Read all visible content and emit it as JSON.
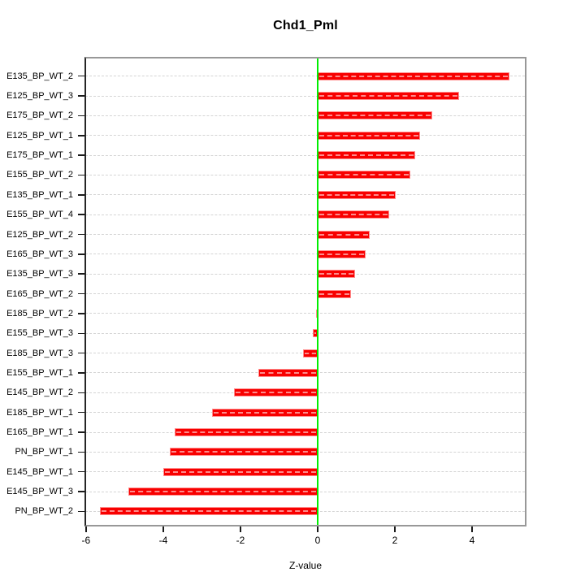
{
  "chart_data": {
    "type": "bar",
    "orientation": "horizontal",
    "title": "Chd1_Pml",
    "xlabel": "Z-value",
    "categories": [
      "E135_BP_WT_2",
      "E125_BP_WT_3",
      "E175_BP_WT_2",
      "E125_BP_WT_1",
      "E175_BP_WT_1",
      "E155_BP_WT_2",
      "E135_BP_WT_1",
      "E155_BP_WT_4",
      "E125_BP_WT_2",
      "E165_BP_WT_3",
      "E135_BP_WT_3",
      "E165_BP_WT_2",
      "E185_BP_WT_2",
      "E155_BP_WT_3",
      "E185_BP_WT_3",
      "E155_BP_WT_1",
      "E145_BP_WT_2",
      "E185_BP_WT_1",
      "E165_BP_WT_1",
      "PN_BP_WT_1",
      "E145_BP_WT_1",
      "E145_BP_WT_3",
      "PN_BP_WT_2"
    ],
    "values": [
      4.97,
      3.67,
      2.97,
      2.65,
      2.52,
      2.41,
      2.03,
      1.85,
      1.35,
      1.24,
      0.97,
      0.86,
      -0.05,
      -0.13,
      -0.37,
      -1.53,
      -2.16,
      -2.74,
      -3.71,
      -3.83,
      -3.99,
      -4.91,
      -5.65
    ],
    "xticks": [
      -6,
      -4,
      -2,
      0,
      2,
      4
    ],
    "xlim": [
      -6.04,
      5.41
    ],
    "grid": "horizontal dashed line per category",
    "legend": "none",
    "zero_reference_line": 0,
    "colors": {
      "bar_fill": "#f80000",
      "bar_border": "#ff8e8e",
      "bar_dash_overlay": "rgba(255,255,255,0.55)",
      "zero_line": "#00ee00",
      "grid_line": "#d4d4d4",
      "frame": "#989898",
      "axis_line": "#262626",
      "text": "#000000",
      "background": "#ffffff"
    }
  }
}
